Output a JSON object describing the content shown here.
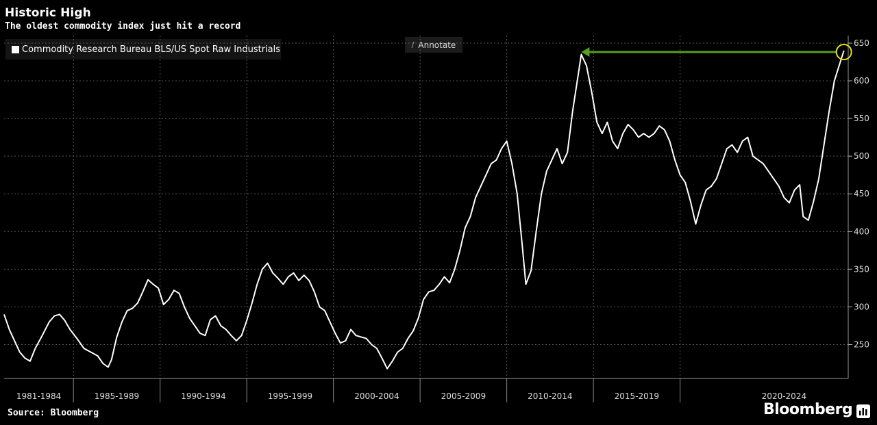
{
  "chart_data": {
    "type": "line",
    "title": "Historic High",
    "subtitle": "The oldest commodity index just hit a record",
    "source": "Source: Bloomberg",
    "brand": "Bloomberg",
    "annotate_label": "Annotate",
    "series": [
      {
        "name": "Commodity Research Bureau BLS/US Spot Raw Industrials",
        "color": "#ffffff",
        "points": [
          [
            1981.0,
            290
          ],
          [
            1981.3,
            270
          ],
          [
            1981.6,
            255
          ],
          [
            1981.9,
            240
          ],
          [
            1982.2,
            232
          ],
          [
            1982.5,
            228
          ],
          [
            1982.8,
            245
          ],
          [
            1983.2,
            262
          ],
          [
            1983.6,
            280
          ],
          [
            1983.9,
            288
          ],
          [
            1984.2,
            290
          ],
          [
            1984.5,
            282
          ],
          [
            1984.8,
            270
          ],
          [
            1985.2,
            258
          ],
          [
            1985.6,
            245
          ],
          [
            1986.0,
            240
          ],
          [
            1986.4,
            235
          ],
          [
            1986.7,
            225
          ],
          [
            1987.0,
            220
          ],
          [
            1987.2,
            230
          ],
          [
            1987.5,
            260
          ],
          [
            1987.8,
            280
          ],
          [
            1988.1,
            295
          ],
          [
            1988.4,
            298
          ],
          [
            1988.7,
            305
          ],
          [
            1989.0,
            320
          ],
          [
            1989.3,
            336
          ],
          [
            1989.6,
            330
          ],
          [
            1989.9,
            325
          ],
          [
            1990.2,
            303
          ],
          [
            1990.5,
            310
          ],
          [
            1990.8,
            322
          ],
          [
            1991.1,
            318
          ],
          [
            1991.4,
            300
          ],
          [
            1991.7,
            285
          ],
          [
            1992.0,
            275
          ],
          [
            1992.3,
            265
          ],
          [
            1992.6,
            262
          ],
          [
            1992.9,
            283
          ],
          [
            1993.2,
            288
          ],
          [
            1993.5,
            275
          ],
          [
            1993.8,
            270
          ],
          [
            1994.1,
            262
          ],
          [
            1994.4,
            255
          ],
          [
            1994.7,
            262
          ],
          [
            1995.0,
            282
          ],
          [
            1995.3,
            305
          ],
          [
            1995.6,
            330
          ],
          [
            1995.9,
            350
          ],
          [
            1996.2,
            358
          ],
          [
            1996.5,
            345
          ],
          [
            1996.8,
            338
          ],
          [
            1997.1,
            330
          ],
          [
            1997.4,
            340
          ],
          [
            1997.7,
            345
          ],
          [
            1998.0,
            335
          ],
          [
            1998.3,
            342
          ],
          [
            1998.6,
            335
          ],
          [
            1998.9,
            320
          ],
          [
            1999.2,
            300
          ],
          [
            1999.5,
            295
          ],
          [
            1999.8,
            280
          ],
          [
            2000.1,
            265
          ],
          [
            2000.4,
            252
          ],
          [
            2000.7,
            255
          ],
          [
            2001.0,
            270
          ],
          [
            2001.3,
            262
          ],
          [
            2001.6,
            260
          ],
          [
            2001.9,
            258
          ],
          [
            2002.2,
            250
          ],
          [
            2002.5,
            245
          ],
          [
            2002.8,
            232
          ],
          [
            2003.1,
            218
          ],
          [
            2003.4,
            228
          ],
          [
            2003.7,
            240
          ],
          [
            2004.0,
            245
          ],
          [
            2004.3,
            258
          ],
          [
            2004.6,
            268
          ],
          [
            2004.9,
            285
          ],
          [
            2005.2,
            310
          ],
          [
            2005.5,
            320
          ],
          [
            2005.8,
            322
          ],
          [
            2006.1,
            330
          ],
          [
            2006.4,
            340
          ],
          [
            2006.7,
            332
          ],
          [
            2007.0,
            350
          ],
          [
            2007.3,
            375
          ],
          [
            2007.6,
            405
          ],
          [
            2007.9,
            420
          ],
          [
            2008.2,
            445
          ],
          [
            2008.5,
            460
          ],
          [
            2008.8,
            475
          ],
          [
            2009.1,
            490
          ],
          [
            2009.4,
            495
          ],
          [
            2009.7,
            510
          ],
          [
            2010.0,
            520
          ],
          [
            2010.3,
            490
          ],
          [
            2010.6,
            450
          ],
          [
            2010.9,
            380
          ],
          [
            2011.1,
            330
          ],
          [
            2011.4,
            348
          ],
          [
            2011.7,
            400
          ],
          [
            2012.0,
            450
          ],
          [
            2012.3,
            480
          ],
          [
            2012.6,
            495
          ],
          [
            2012.9,
            510
          ],
          [
            2013.2,
            490
          ],
          [
            2013.5,
            505
          ],
          [
            2013.8,
            560
          ],
          [
            2014.1,
            605
          ],
          [
            2014.3,
            635
          ],
          [
            2014.6,
            620
          ],
          [
            2014.9,
            585
          ],
          [
            2015.2,
            545
          ],
          [
            2015.5,
            530
          ],
          [
            2015.8,
            545
          ],
          [
            2016.1,
            520
          ],
          [
            2016.4,
            510
          ],
          [
            2016.7,
            530
          ],
          [
            2017.0,
            542
          ],
          [
            2017.3,
            535
          ],
          [
            2017.6,
            525
          ],
          [
            2017.9,
            530
          ],
          [
            2018.2,
            525
          ],
          [
            2018.5,
            530
          ],
          [
            2018.8,
            540
          ],
          [
            2019.1,
            535
          ],
          [
            2019.4,
            520
          ],
          [
            2019.7,
            495
          ],
          [
            2020.0,
            475
          ],
          [
            2020.3,
            465
          ],
          [
            2020.6,
            440
          ],
          [
            2020.9,
            410
          ],
          [
            2021.2,
            435
          ],
          [
            2021.5,
            455
          ],
          [
            2021.8,
            460
          ],
          [
            2022.1,
            470
          ],
          [
            2022.4,
            490
          ],
          [
            2022.7,
            510
          ],
          [
            2023.0,
            515
          ],
          [
            2023.3,
            505
          ],
          [
            2023.6,
            520
          ],
          [
            2023.9,
            525
          ],
          [
            2024.2,
            500
          ],
          [
            2024.5,
            495
          ],
          [
            2024.8,
            490
          ],
          [
            2025.1,
            480
          ],
          [
            2025.4,
            470
          ],
          [
            2025.7,
            460
          ],
          [
            2026.0,
            445
          ],
          [
            2026.3,
            438
          ],
          [
            2026.6,
            455
          ],
          [
            2026.9,
            462
          ],
          [
            2027.1,
            420
          ],
          [
            2027.4,
            415
          ],
          [
            2027.7,
            440
          ],
          [
            2028.0,
            470
          ],
          [
            2028.3,
            515
          ],
          [
            2028.6,
            560
          ],
          [
            2028.9,
            600
          ],
          [
            2029.2,
            622
          ],
          [
            2029.45,
            640
          ]
        ]
      }
    ],
    "x_range": [
      1981.0,
      2029.7
    ],
    "ylim": [
      205,
      660
    ],
    "y_ticks": [
      250,
      300,
      350,
      400,
      450,
      500,
      550,
      600,
      650
    ],
    "x_period_labels": [
      "1981-1984",
      "1985-1989",
      "1990-1994",
      "1995-1999",
      "2000-2004",
      "2005-2009",
      "2010-2014",
      "2015-2019",
      "2020-2024"
    ],
    "x_period_boundaries": [
      1985.0,
      1990.0,
      1995.0,
      2000.0,
      2005.0,
      2010.0,
      2015.0,
      2020.0
    ],
    "x_period_centers": [
      1983.0,
      1987.5,
      1992.5,
      1997.5,
      2002.5,
      2007.5,
      2012.5,
      2017.5,
      2026.0
    ],
    "grid": true,
    "legend_position": "top-left",
    "annotations": {
      "arrow_color": "#5a9e1f",
      "arrow_from": [
        2029.45,
        640
      ],
      "arrow_to": [
        2014.3,
        640
      ],
      "circle_color": "#e8e11a",
      "circle_at": [
        2029.45,
        640
      ]
    }
  }
}
